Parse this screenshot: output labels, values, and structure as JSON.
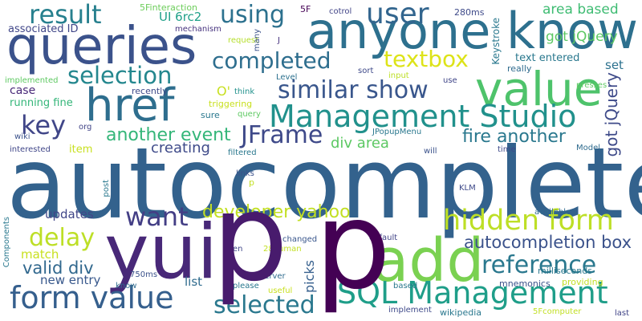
{
  "words": [
    "autocomplete",
    "p",
    "p",
    "yui",
    "add",
    "anyone know",
    "queries",
    "value",
    "href",
    "Management Studio",
    "user",
    "form value",
    "SQL Management",
    "hidden form",
    "result",
    "completed",
    "textbox",
    "selection",
    "using",
    "similar show",
    "key",
    "JFrame",
    "reference",
    "want",
    "delay",
    "selected",
    "developer yahoo",
    "autocompletion box",
    "fire another",
    "another event",
    "got jQuery",
    "area based",
    "div area",
    "valid div",
    "creating",
    "updates",
    "item",
    "match",
    "picks",
    "list",
    "new entry",
    "set",
    "case",
    "running fine",
    "associated ID",
    "UI 6rc2",
    "5Finteraction",
    "mechanism",
    "5F",
    "cotrol",
    "request",
    "many",
    "J",
    "Keystroke",
    "280ms",
    "text entered",
    "really",
    "presses",
    "implemented",
    "sort",
    "input",
    "use",
    "Level",
    "think",
    "query",
    "recently",
    "O'",
    "triggering",
    "sure",
    "JPopupMenu",
    "org",
    "wiki",
    "interested",
    "filtered",
    "will",
    "time",
    "Model",
    "links",
    "p",
    "post",
    "KLM",
    "available",
    "Components",
    "changed",
    "28human",
    "default",
    "milliseconds",
    "en",
    "server",
    "750ms",
    "please",
    "useful",
    "know",
    "based",
    "providing",
    "mnemonics",
    "implement",
    "wikipedia",
    "5Fcomputer",
    "last"
  ]
}
